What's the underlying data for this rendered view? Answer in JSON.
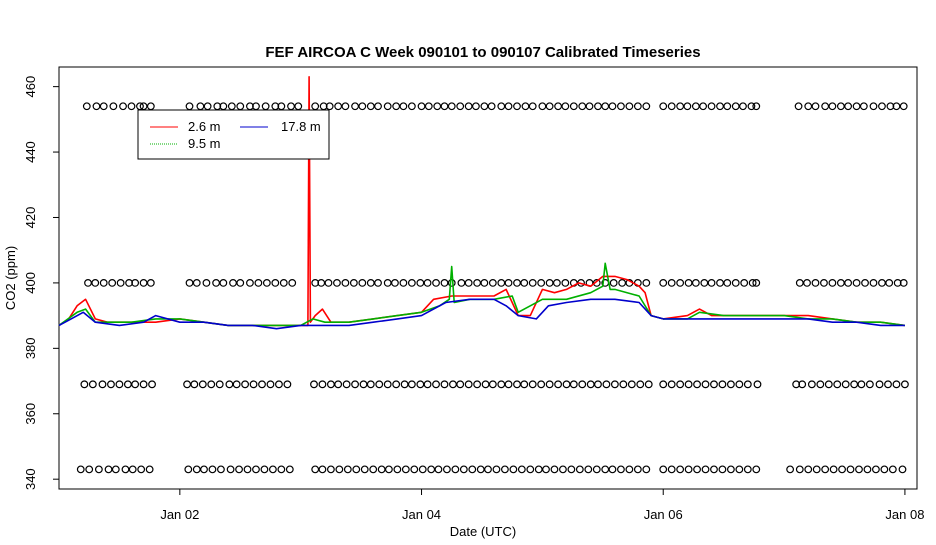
{
  "chart_data": {
    "type": "line",
    "title": "FEF AIRCOA C  Week 090101 to 090107  Calibrated Timeseries",
    "xlabel": "Date (UTC)",
    "ylabel": "CO2 (ppm)",
    "x_unit": "days (UTC), Jan 1–8 2009",
    "xlim": [
      1.0,
      8.1
    ],
    "ylim": [
      337,
      466
    ],
    "x_ticks": [
      {
        "value": 2,
        "label": "Jan 02"
      },
      {
        "value": 4,
        "label": "Jan 04"
      },
      {
        "value": 6,
        "label": "Jan 06"
      },
      {
        "value": 8,
        "label": "Jan 08"
      }
    ],
    "y_ticks": [
      340,
      360,
      380,
      400,
      420,
      440,
      460
    ],
    "legend": {
      "position": "top-left",
      "entries": [
        {
          "name": "2.6 m",
          "color": "#ff0000",
          "dash": "solid"
        },
        {
          "name": "9.5 m",
          "color": "#00b000",
          "dash": "dotted"
        },
        {
          "name": "17.8 m",
          "color": "#0000cc",
          "dash": "solid"
        }
      ]
    },
    "series": [
      {
        "name": "2.6 m",
        "color": "#ff0000",
        "x": [
          1.0,
          1.08,
          1.15,
          1.22,
          1.3,
          1.4,
          1.6,
          1.8,
          2.0,
          2.2,
          2.4,
          2.6,
          2.8,
          2.94,
          3.02,
          3.06,
          3.07,
          3.08,
          3.12,
          3.18,
          3.25,
          3.4,
          3.6,
          3.8,
          4.0,
          4.1,
          4.25,
          4.4,
          4.6,
          4.7,
          4.75,
          4.8,
          4.9,
          5.0,
          5.1,
          5.2,
          5.3,
          5.4,
          5.5,
          5.6,
          5.7,
          5.8,
          5.85,
          5.9,
          6.0,
          6.2,
          6.3,
          6.4,
          6.6,
          6.8,
          7.0,
          7.2,
          7.4,
          7.6,
          7.8,
          8.0
        ],
        "values": [
          387,
          389,
          393,
          395,
          389,
          388,
          388,
          388,
          389,
          388,
          387,
          387,
          387,
          387,
          387,
          387,
          463,
          388,
          390,
          392,
          388,
          388,
          389,
          390,
          391,
          395,
          396,
          396,
          396,
          398,
          394,
          390,
          390,
          398,
          397,
          398,
          400,
          399,
          402,
          402,
          401,
          399,
          397,
          390,
          389,
          390,
          392,
          390,
          390,
          390,
          390,
          390,
          389,
          388,
          388,
          387
        ]
      },
      {
        "name": "9.5 m",
        "color": "#00b000",
        "x": [
          1.0,
          1.15,
          1.22,
          1.3,
          1.4,
          1.6,
          1.8,
          2.0,
          2.4,
          2.8,
          3.0,
          3.1,
          3.2,
          3.4,
          3.6,
          3.8,
          4.0,
          4.15,
          4.23,
          4.25,
          4.27,
          4.4,
          4.6,
          4.75,
          4.8,
          5.0,
          5.2,
          5.4,
          5.5,
          5.52,
          5.56,
          5.6,
          5.8,
          5.9,
          6.0,
          6.2,
          6.3,
          6.5,
          6.7,
          6.8,
          7.0,
          7.2,
          7.4,
          7.6,
          7.8,
          8.0
        ],
        "values": [
          387,
          391,
          392,
          388,
          388,
          388,
          389,
          389,
          387,
          387,
          387,
          389,
          388,
          388,
          389,
          390,
          391,
          393,
          395,
          405,
          394,
          395,
          395,
          396,
          391,
          395,
          395,
          397,
          399,
          406,
          398,
          398,
          396,
          390,
          389,
          389,
          391,
          390,
          390,
          390,
          390,
          389,
          389,
          388,
          388,
          387
        ]
      },
      {
        "name": "17.8 m",
        "color": "#0000cc",
        "x": [
          1.0,
          1.1,
          1.2,
          1.3,
          1.5,
          1.7,
          1.8,
          2.0,
          2.2,
          2.4,
          2.6,
          2.8,
          3.0,
          3.2,
          3.4,
          3.6,
          3.8,
          4.0,
          4.1,
          4.2,
          4.4,
          4.6,
          4.7,
          4.8,
          4.95,
          5.05,
          5.2,
          5.4,
          5.5,
          5.6,
          5.8,
          5.9,
          6.0,
          6.2,
          6.4,
          6.6,
          6.8,
          7.0,
          7.2,
          7.4,
          7.6,
          7.8,
          8.0
        ],
        "values": [
          387,
          389,
          391,
          388,
          387,
          388,
          390,
          388,
          388,
          387,
          387,
          386,
          387,
          387,
          387,
          388,
          389,
          390,
          392,
          394,
          395,
          395,
          393,
          390,
          389,
          393,
          394,
          395,
          395,
          395,
          394,
          390,
          389,
          389,
          389,
          389,
          389,
          389,
          389,
          388,
          388,
          387,
          387
        ]
      }
    ],
    "marker_rows": [
      {
        "y": 454,
        "x": [
          1.23,
          1.31,
          1.37,
          1.45,
          1.53,
          1.6,
          1.67,
          1.7,
          1.76,
          2.08,
          2.17,
          2.23,
          2.31,
          2.36,
          2.43,
          2.5,
          2.58,
          2.63,
          2.71,
          2.79,
          2.84,
          2.92,
          2.98,
          3.12,
          3.19,
          3.24,
          3.31,
          3.37,
          3.45,
          3.51,
          3.58,
          3.64,
          3.72,
          3.79,
          3.85,
          3.92,
          4.0,
          4.06,
          4.13,
          4.19,
          4.25,
          4.32,
          4.39,
          4.45,
          4.52,
          4.58,
          4.66,
          4.72,
          4.79,
          4.86,
          4.92,
          5.0,
          5.06,
          5.13,
          5.19,
          5.26,
          5.33,
          5.39,
          5.46,
          5.52,
          5.58,
          5.65,
          5.72,
          5.79,
          5.86,
          6.0,
          6.07,
          6.14,
          6.2,
          6.27,
          6.33,
          6.4,
          6.47,
          6.53,
          6.6,
          6.66,
          6.73,
          6.77,
          7.12,
          7.2,
          7.26,
          7.34,
          7.4,
          7.47,
          7.53,
          7.6,
          7.66,
          7.74,
          7.81,
          7.88,
          7.93,
          7.99
        ]
      },
      {
        "y": 400,
        "x": [
          1.24,
          1.3,
          1.37,
          1.44,
          1.51,
          1.58,
          1.63,
          1.7,
          1.76,
          2.08,
          2.14,
          2.22,
          2.3,
          2.36,
          2.44,
          2.5,
          2.58,
          2.65,
          2.72,
          2.79,
          2.86,
          2.93,
          3.12,
          3.17,
          3.23,
          3.3,
          3.37,
          3.44,
          3.51,
          3.58,
          3.64,
          3.72,
          3.78,
          3.85,
          3.92,
          3.99,
          4.05,
          4.12,
          4.19,
          4.25,
          4.33,
          4.39,
          4.46,
          4.52,
          4.59,
          4.66,
          4.72,
          4.79,
          4.85,
          4.92,
          4.99,
          5.06,
          5.12,
          5.19,
          5.26,
          5.32,
          5.39,
          5.45,
          5.52,
          5.59,
          5.66,
          5.72,
          5.79,
          5.86,
          6.0,
          6.07,
          6.14,
          6.21,
          6.27,
          6.34,
          6.4,
          6.47,
          6.53,
          6.6,
          6.67,
          6.74,
          6.77,
          7.13,
          7.19,
          7.26,
          7.33,
          7.4,
          7.47,
          7.53,
          7.6,
          7.67,
          7.74,
          7.81,
          7.87,
          7.94,
          7.99
        ]
      },
      {
        "y": 369,
        "x": [
          1.21,
          1.28,
          1.36,
          1.43,
          1.5,
          1.57,
          1.63,
          1.7,
          1.77,
          2.06,
          2.12,
          2.19,
          2.26,
          2.33,
          2.41,
          2.47,
          2.54,
          2.61,
          2.68,
          2.75,
          2.82,
          2.89,
          3.11,
          3.18,
          3.25,
          3.31,
          3.38,
          3.45,
          3.52,
          3.58,
          3.65,
          3.72,
          3.79,
          3.86,
          3.92,
          3.99,
          4.05,
          4.12,
          4.19,
          4.26,
          4.32,
          4.39,
          4.46,
          4.53,
          4.59,
          4.66,
          4.72,
          4.79,
          4.85,
          4.92,
          4.99,
          5.06,
          5.13,
          5.2,
          5.26,
          5.33,
          5.4,
          5.46,
          5.53,
          5.6,
          5.67,
          5.74,
          5.81,
          5.88,
          6.0,
          6.07,
          6.14,
          6.21,
          6.28,
          6.35,
          6.42,
          6.49,
          6.56,
          6.63,
          6.7,
          6.78,
          7.1,
          7.15,
          7.23,
          7.3,
          7.37,
          7.44,
          7.51,
          7.58,
          7.64,
          7.71,
          7.79,
          7.86,
          7.93,
          8.0
        ]
      },
      {
        "y": 343,
        "x": [
          1.18,
          1.25,
          1.33,
          1.41,
          1.47,
          1.55,
          1.61,
          1.68,
          1.75,
          2.07,
          2.14,
          2.2,
          2.27,
          2.34,
          2.42,
          2.49,
          2.56,
          2.63,
          2.7,
          2.77,
          2.84,
          2.91,
          3.12,
          3.18,
          3.25,
          3.32,
          3.39,
          3.46,
          3.53,
          3.6,
          3.67,
          3.73,
          3.8,
          3.87,
          3.94,
          4.01,
          4.08,
          4.14,
          4.21,
          4.28,
          4.35,
          4.42,
          4.49,
          4.55,
          4.62,
          4.69,
          4.76,
          4.83,
          4.9,
          4.97,
          5.03,
          5.1,
          5.17,
          5.24,
          5.31,
          5.38,
          5.45,
          5.52,
          5.58,
          5.65,
          5.72,
          5.79,
          5.86,
          6.0,
          6.07,
          6.14,
          6.21,
          6.28,
          6.35,
          6.42,
          6.49,
          6.56,
          6.63,
          6.7,
          6.77,
          7.05,
          7.13,
          7.2,
          7.27,
          7.34,
          7.41,
          7.48,
          7.55,
          7.62,
          7.69,
          7.76,
          7.83,
          7.9,
          7.98
        ]
      }
    ]
  }
}
